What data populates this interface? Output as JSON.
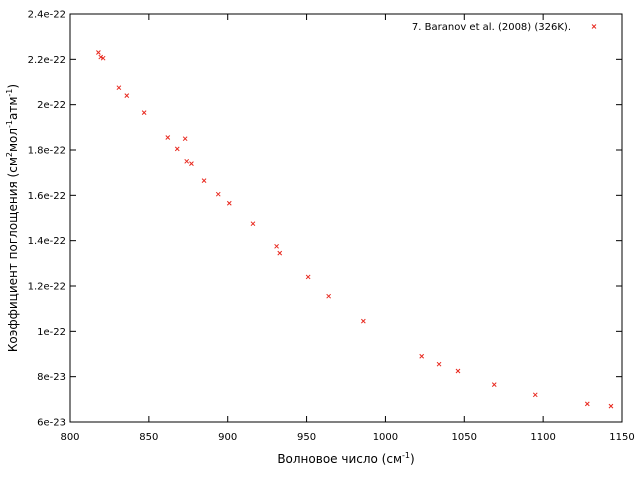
{
  "chart_data": {
    "type": "scatter",
    "xlabel": "Волновое число (см",
    "xlabel_sup": "-1",
    "xlabel_end": ")",
    "ylabel_parts": [
      "Коэффициент поглощения (см",
      "2",
      "мол",
      "-1",
      "атм",
      "-1",
      ")"
    ],
    "xlim": [
      800,
      1150
    ],
    "ylim": [
      6e-23,
      2.4e-22
    ],
    "x_ticks": [
      800,
      850,
      900,
      950,
      1000,
      1050,
      1100,
      1150
    ],
    "x_tick_labels": [
      "800",
      "850",
      "900",
      "950",
      "1000",
      "1050",
      "1100",
      "1150"
    ],
    "y_ticks": [
      6e-23,
      8e-23,
      1e-22,
      1.2e-22,
      1.4e-22,
      1.6e-22,
      1.8e-22,
      2e-22,
      2.2e-22,
      2.4e-22
    ],
    "y_tick_labels": [
      "6e-23",
      "8e-23",
      "1e-22",
      "1.2e-22",
      "1.4e-22",
      "1.6e-22",
      "1.8e-22",
      "2e-22",
      "2.2e-22",
      "2.4e-22"
    ],
    "grid": false,
    "legend_position": "top-right",
    "series": [
      {
        "name": "7. Baranov et al. (2008) (326K).",
        "color": "#e8281e",
        "marker": "x",
        "x": [
          818,
          819.5,
          821,
          831,
          836,
          847,
          862,
          868,
          873,
          874,
          877,
          885,
          894,
          901,
          916,
          931,
          933,
          951,
          964,
          986,
          1023,
          1034,
          1046,
          1069,
          1095,
          1128,
          1143
        ],
        "y": [
          2.23e-22,
          2.21e-22,
          2.205e-22,
          2.075e-22,
          2.04e-22,
          1.965e-22,
          1.855e-22,
          1.805e-22,
          1.85e-22,
          1.75e-22,
          1.74e-22,
          1.665e-22,
          1.605e-22,
          1.565e-22,
          1.475e-22,
          1.375e-22,
          1.345e-22,
          1.24e-22,
          1.155e-22,
          1.045e-22,
          8.9e-23,
          8.55e-23,
          8.25e-23,
          7.65e-23,
          7.2e-23,
          6.8e-23,
          6.7e-23
        ]
      }
    ]
  }
}
